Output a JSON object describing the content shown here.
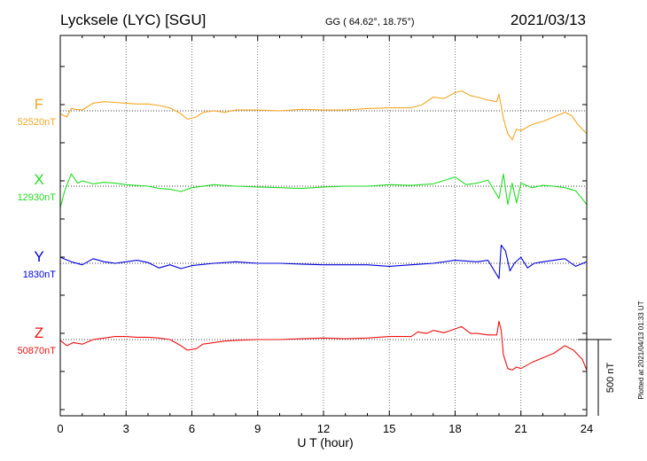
{
  "header": {
    "station": "Lycksele (LYC)  [SGU]",
    "coords": "GG ( 64.62°,  18.75°)",
    "date": "2021/03/13"
  },
  "footer_note": "Plotted at 2021/04/13 01:33 UT",
  "chart_data": {
    "type": "line",
    "title": "Lycksele (LYC)  [SGU]",
    "xlabel": "U T (hour)",
    "ylabel": "",
    "xlim": [
      0,
      24
    ],
    "x_ticks": [
      "0",
      "3",
      "6",
      "9",
      "12",
      "15",
      "18",
      "21",
      "24"
    ],
    "grid": true,
    "scale_bar_label": "500 nT",
    "scale_bar_nt": 500,
    "series": [
      {
        "name": "F",
        "baseline_label": "52520nT",
        "color": "#f5a623",
        "points": [
          [
            0,
            -20
          ],
          [
            0.3,
            -40
          ],
          [
            0.5,
            15
          ],
          [
            0.7,
            10
          ],
          [
            1,
            5
          ],
          [
            1.5,
            50
          ],
          [
            2,
            60
          ],
          [
            2.5,
            55
          ],
          [
            3,
            50
          ],
          [
            3.5,
            45
          ],
          [
            4,
            45
          ],
          [
            4.5,
            35
          ],
          [
            5,
            20
          ],
          [
            5.5,
            -20
          ],
          [
            5.8,
            -55
          ],
          [
            6.2,
            -40
          ],
          [
            6.5,
            -10
          ],
          [
            7,
            0
          ],
          [
            7.5,
            -10
          ],
          [
            8,
            5
          ],
          [
            9,
            5
          ],
          [
            10,
            0
          ],
          [
            11,
            10
          ],
          [
            12,
            5
          ],
          [
            13,
            5
          ],
          [
            14,
            15
          ],
          [
            15,
            20
          ],
          [
            16,
            20
          ],
          [
            16.5,
            40
          ],
          [
            17,
            90
          ],
          [
            17.5,
            80
          ],
          [
            18,
            120
          ],
          [
            18.3,
            130
          ],
          [
            18.7,
            100
          ],
          [
            19,
            90
          ],
          [
            19.5,
            70
          ],
          [
            19.9,
            60
          ],
          [
            20,
            110
          ],
          [
            20.1,
            30
          ],
          [
            20.2,
            -50
          ],
          [
            20.4,
            -150
          ],
          [
            20.6,
            -190
          ],
          [
            20.8,
            -120
          ],
          [
            21,
            -130
          ],
          [
            21.5,
            -90
          ],
          [
            22,
            -70
          ],
          [
            22.5,
            -40
          ],
          [
            23,
            -10
          ],
          [
            23.3,
            -30
          ],
          [
            23.6,
            -90
          ],
          [
            24,
            -150
          ]
        ]
      },
      {
        "name": "X",
        "baseline_label": "12930nT",
        "color": "#22dd22",
        "points": [
          [
            0,
            -140
          ],
          [
            0.2,
            -30
          ],
          [
            0.5,
            80
          ],
          [
            0.8,
            20
          ],
          [
            1,
            35
          ],
          [
            1.5,
            15
          ],
          [
            2,
            25
          ],
          [
            2.5,
            20
          ],
          [
            3,
            10
          ],
          [
            4,
            0
          ],
          [
            4.5,
            -15
          ],
          [
            5,
            -20
          ],
          [
            5.5,
            -35
          ],
          [
            6,
            -10
          ],
          [
            7,
            10
          ],
          [
            8,
            0
          ],
          [
            9,
            -5
          ],
          [
            10,
            -10
          ],
          [
            11,
            -15
          ],
          [
            12,
            -5
          ],
          [
            13,
            0
          ],
          [
            14,
            0
          ],
          [
            15,
            10
          ],
          [
            16,
            5
          ],
          [
            17,
            15
          ],
          [
            18,
            60
          ],
          [
            18.5,
            10
          ],
          [
            19,
            20
          ],
          [
            19.5,
            40
          ],
          [
            20,
            -80
          ],
          [
            20.2,
            80
          ],
          [
            20.4,
            -120
          ],
          [
            20.6,
            20
          ],
          [
            20.8,
            -110
          ],
          [
            21,
            20
          ],
          [
            21.5,
            -10
          ],
          [
            22,
            5
          ],
          [
            22.5,
            0
          ],
          [
            23,
            -10
          ],
          [
            23.5,
            -30
          ],
          [
            24,
            -120
          ]
        ]
      },
      {
        "name": "Y",
        "baseline_label": "1830nT",
        "color": "#0000dd",
        "points": [
          [
            0,
            40
          ],
          [
            0.5,
            10
          ],
          [
            1,
            -10
          ],
          [
            1.5,
            30
          ],
          [
            2,
            10
          ],
          [
            2.5,
            0
          ],
          [
            3,
            10
          ],
          [
            3.5,
            20
          ],
          [
            4,
            5
          ],
          [
            4.5,
            -30
          ],
          [
            5,
            -10
          ],
          [
            5.5,
            -35
          ],
          [
            6,
            -15
          ],
          [
            7,
            0
          ],
          [
            8,
            10
          ],
          [
            9,
            0
          ],
          [
            10,
            0
          ],
          [
            11,
            -5
          ],
          [
            12,
            -10
          ],
          [
            13,
            -10
          ],
          [
            14,
            -10
          ],
          [
            15,
            -20
          ],
          [
            16,
            -10
          ],
          [
            17,
            0
          ],
          [
            18,
            20
          ],
          [
            19,
            10
          ],
          [
            19.5,
            20
          ],
          [
            20,
            -100
          ],
          [
            20.1,
            120
          ],
          [
            20.3,
            80
          ],
          [
            20.5,
            -50
          ],
          [
            20.7,
            0
          ],
          [
            21,
            40
          ],
          [
            21.3,
            -30
          ],
          [
            21.6,
            0
          ],
          [
            22,
            10
          ],
          [
            22.5,
            20
          ],
          [
            23,
            30
          ],
          [
            23.5,
            -20
          ],
          [
            24,
            10
          ]
        ]
      },
      {
        "name": "Z",
        "baseline_label": "50870nT",
        "color": "#ee1111",
        "points": [
          [
            0,
            -5
          ],
          [
            0.3,
            -40
          ],
          [
            0.6,
            -20
          ],
          [
            1,
            -30
          ],
          [
            1.5,
            0
          ],
          [
            2,
            10
          ],
          [
            2.5,
            20
          ],
          [
            3,
            20
          ],
          [
            3.5,
            15
          ],
          [
            4,
            15
          ],
          [
            4.5,
            10
          ],
          [
            5,
            0
          ],
          [
            5.5,
            -40
          ],
          [
            5.8,
            -70
          ],
          [
            6.2,
            -60
          ],
          [
            6.5,
            -30
          ],
          [
            7,
            -20
          ],
          [
            7.5,
            -10
          ],
          [
            8,
            -5
          ],
          [
            9,
            0
          ],
          [
            10,
            0
          ],
          [
            11,
            5
          ],
          [
            12,
            10
          ],
          [
            13,
            5
          ],
          [
            14,
            10
          ],
          [
            15,
            20
          ],
          [
            16,
            20
          ],
          [
            16.3,
            50
          ],
          [
            16.7,
            40
          ],
          [
            17,
            60
          ],
          [
            17.5,
            45
          ],
          [
            18,
            70
          ],
          [
            18.3,
            85
          ],
          [
            18.7,
            40
          ],
          [
            19,
            40
          ],
          [
            19.5,
            30
          ],
          [
            19.9,
            30
          ],
          [
            20,
            120
          ],
          [
            20.1,
            60
          ],
          [
            20.2,
            -100
          ],
          [
            20.4,
            -190
          ],
          [
            20.6,
            -200
          ],
          [
            20.8,
            -180
          ],
          [
            21,
            -190
          ],
          [
            21.5,
            -150
          ],
          [
            22,
            -120
          ],
          [
            22.5,
            -90
          ],
          [
            23,
            -40
          ],
          [
            23.4,
            -70
          ],
          [
            23.8,
            -130
          ],
          [
            24,
            -200
          ]
        ]
      }
    ]
  }
}
